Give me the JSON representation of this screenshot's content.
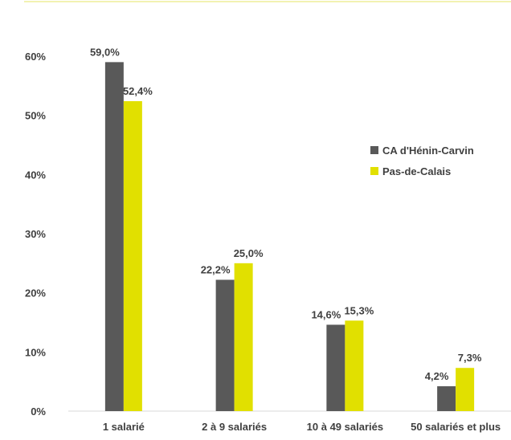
{
  "chart_data": {
    "type": "bar",
    "title": "",
    "xlabel": "",
    "ylabel": "",
    "categories": [
      "1 salarié",
      "2 à 9 salariés",
      "10 à 49 salariés",
      "50 salariés et plus"
    ],
    "series": [
      {
        "name": "CA d'Hénin-Carvin",
        "values": [
          59.0,
          22.2,
          14.6,
          4.2
        ],
        "labels": [
          "59,0%",
          "22,2%",
          "14,6%",
          "4,2%"
        ],
        "color": "#595959"
      },
      {
        "name": "Pas-de-Calais",
        "values": [
          52.4,
          25.0,
          15.3,
          7.3
        ],
        "labels": [
          "52,4%",
          "25,0%",
          "15,3%",
          "7,3%"
        ],
        "color": "#e1e000"
      }
    ],
    "ylim": [
      0,
      60
    ],
    "yticks": [
      {
        "value": 0,
        "label": "0%"
      },
      {
        "value": 10,
        "label": "10%"
      },
      {
        "value": 20,
        "label": "20%"
      },
      {
        "value": 30,
        "label": "30%"
      },
      {
        "value": 40,
        "label": "40%"
      },
      {
        "value": 50,
        "label": "50%"
      },
      {
        "value": 60,
        "label": "60%"
      }
    ],
    "grid": false,
    "legend": "right",
    "top_rule_color": "#eeee99"
  }
}
